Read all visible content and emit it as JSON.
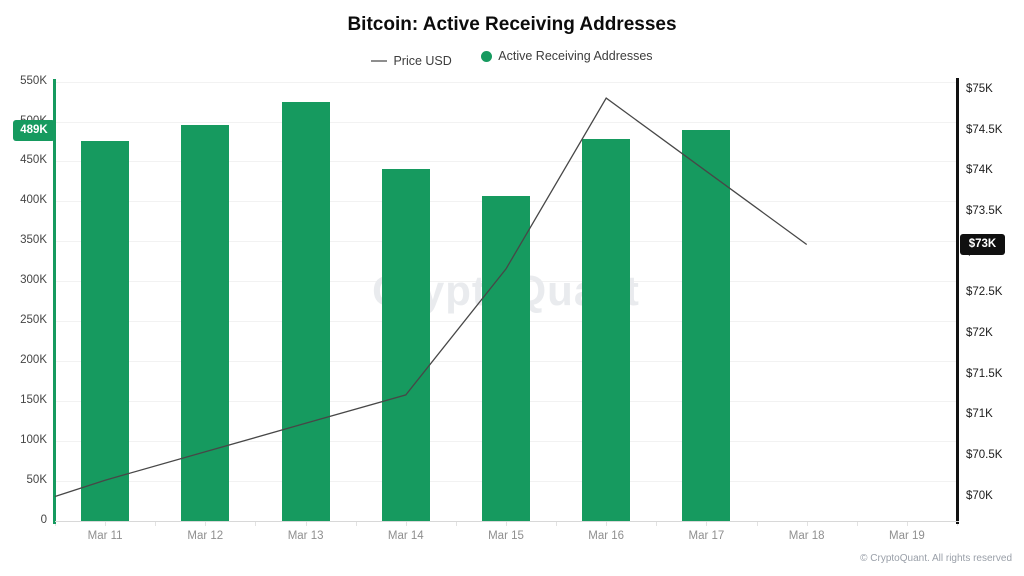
{
  "title": "Bitcoin: Active Receiving Addresses",
  "legend": {
    "price": {
      "label": "Price USD"
    },
    "addresses": {
      "label": "Active Receiving Addresses"
    }
  },
  "watermark": "CryptoQuant",
  "footer": "© CryptoQuant. All rights reserved",
  "badges": {
    "addresses_latest": {
      "text": "489K",
      "value_thousands": 489
    },
    "price_latest": {
      "text": "$73K",
      "value_thousands_usd": 73.1
    }
  },
  "colors": {
    "bar_green": "#169a5f",
    "price_line": "#474747",
    "badge_black": "#101010",
    "watermark_gray": "#e9ebee",
    "grid_gray": "#f2f2f2",
    "left_spine": "#169a5f",
    "right_spine": "#111111"
  },
  "chart_data": {
    "type": "bar",
    "title": "Bitcoin: Active Receiving Addresses",
    "categories": [
      "Mar 11",
      "Mar 12",
      "Mar 13",
      "Mar 14",
      "Mar 15",
      "Mar 16",
      "Mar 17",
      "Mar 18",
      "Mar 19"
    ],
    "series": [
      {
        "name": "Active Receiving Addresses",
        "type": "bar",
        "axis": "left",
        "unit": "addresses (thousands)",
        "values": [
          475,
          496,
          525,
          440,
          407,
          478,
          489,
          null,
          null
        ]
      },
      {
        "name": "Price USD",
        "type": "line",
        "axis": "right",
        "unit": "USD (thousands)",
        "values": [
          70.2,
          70.55,
          70.9,
          71.25,
          72.8,
          74.9,
          74.0,
          73.1,
          null
        ],
        "edge_start_value": 70.0
      }
    ],
    "left_axis": {
      "tick_values": [
        0,
        50,
        100,
        150,
        200,
        250,
        300,
        350,
        400,
        450,
        500,
        550
      ],
      "tick_labels": [
        "0",
        "50K",
        "100K",
        "150K",
        "200K",
        "250K",
        "300K",
        "350K",
        "400K",
        "450K",
        "500K",
        "550K"
      ],
      "range_thousands": [
        0,
        550
      ],
      "latest_marker_thousands": 489
    },
    "right_axis": {
      "tick_values": [
        70,
        70.5,
        71,
        71.5,
        72,
        72.5,
        73,
        73.5,
        74,
        74.5,
        75
      ],
      "tick_labels": [
        "$70K",
        "$70.5K",
        "$71K",
        "$71.5K",
        "$72K",
        "$72.5K",
        "$73K",
        "$73.5K",
        "$74K",
        "$74.5K",
        "$75K"
      ],
      "latest_marker_thousands_usd": 73.1
    },
    "legend_position": "top",
    "grid": "horizontal"
  }
}
